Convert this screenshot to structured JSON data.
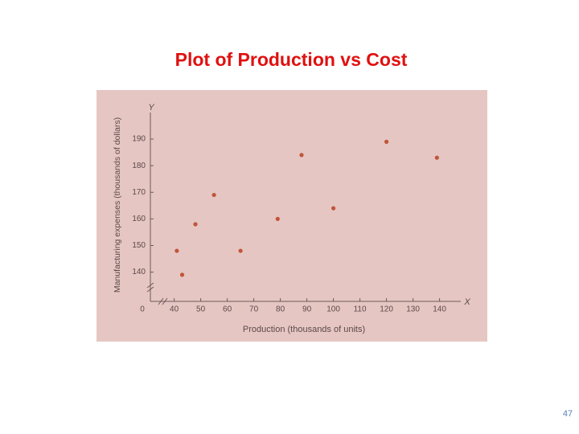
{
  "chart_data": {
    "type": "scatter",
    "title": "Plot of Production vs Cost",
    "x_label": "Production (thousands of units)",
    "y_label": "Manufacturing expenses (thousands of dollars)",
    "x_axis_letter": "X",
    "y_axis_letter": "Y",
    "origin_label": "0",
    "x": [
      41,
      43,
      48,
      55,
      65,
      79,
      88,
      100,
      120,
      139
    ],
    "series": [
      {
        "color": "#c0553a",
        "values": [
          148,
          139,
          158,
          169,
          148,
          160,
          184,
          164,
          189,
          183
        ]
      }
    ],
    "xlim": [
      28,
      148
    ],
    "xticks": [
      40,
      50,
      60,
      70,
      80,
      90,
      100,
      110,
      120,
      130,
      140
    ],
    "ylim": [
      129,
      203
    ],
    "yticks": [
      140,
      150,
      160,
      170,
      180,
      190
    ]
  },
  "page_number": "47"
}
